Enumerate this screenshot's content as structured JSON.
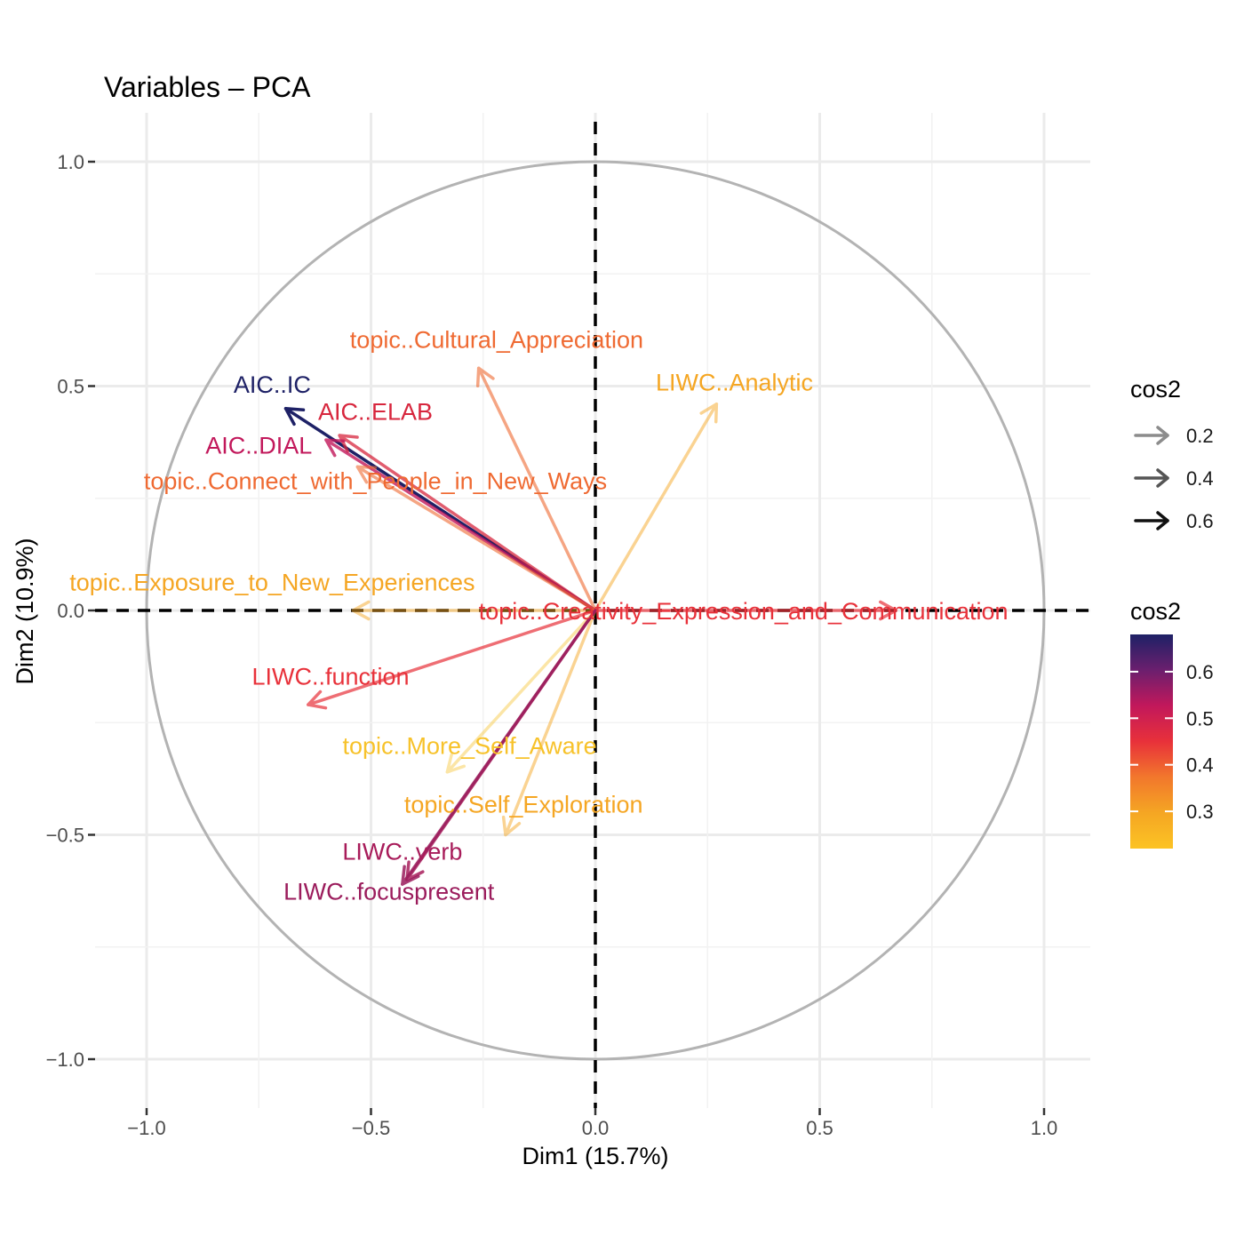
{
  "chart_data": {
    "type": "pca-variable-correlation-circle",
    "title": "Variables – PCA",
    "xlabel": "Dim1 (15.7%)",
    "ylabel": "Dim2 (10.9%)",
    "xlim": [
      -1.1,
      1.1
    ],
    "ylim": [
      -1.1,
      1.1
    ],
    "x_ticks": [
      {
        "value": -1.0,
        "label": "−1.0"
      },
      {
        "value": -0.5,
        "label": "−0.5"
      },
      {
        "value": 0.0,
        "label": "0.0"
      },
      {
        "value": 0.5,
        "label": "0.5"
      },
      {
        "value": 1.0,
        "label": "1.0"
      }
    ],
    "y_ticks": [
      {
        "value": 1.0,
        "label": "1.0"
      },
      {
        "value": 0.5,
        "label": "0.5"
      },
      {
        "value": 0.0,
        "label": "0.0"
      },
      {
        "value": -0.5,
        "label": "−0.5"
      },
      {
        "value": -1.0,
        "label": "−1.0"
      }
    ],
    "grid": true,
    "unit_circle": true,
    "variables": [
      {
        "name": "topic..Cultural_Appreciation",
        "x": -0.26,
        "y": 0.54,
        "cos2": 0.38,
        "color": "#ef6a32",
        "label_x": -0.22,
        "label_y": 0.585
      },
      {
        "name": "LIWC..Analytic",
        "x": 0.27,
        "y": 0.46,
        "cos2": 0.3,
        "color": "#f5a623",
        "label_x": 0.31,
        "label_y": 0.49
      },
      {
        "name": "AIC..IC",
        "x": -0.69,
        "y": 0.45,
        "cos2": 0.68,
        "color": "#1e2166",
        "label_x": -0.72,
        "label_y": 0.485
      },
      {
        "name": "AIC..ELAB",
        "x": -0.57,
        "y": 0.39,
        "cos2": 0.48,
        "color": "#d7263d",
        "label_x": -0.49,
        "label_y": 0.425
      },
      {
        "name": "AIC..DIAL",
        "x": -0.6,
        "y": 0.38,
        "cos2": 0.52,
        "color": "#c2185b",
        "label_x": -0.75,
        "label_y": 0.35
      },
      {
        "name": "topic..Connect_with_People_in_New_Ways",
        "x": -0.53,
        "y": 0.32,
        "cos2": 0.38,
        "color": "#ef6a32",
        "label_x": -0.49,
        "label_y": 0.27
      },
      {
        "name": "topic..Exposure_to_New_Experiences",
        "x": -0.54,
        "y": 0.0,
        "cos2": 0.3,
        "color": "#f5a623",
        "label_x": -0.72,
        "label_y": 0.045
      },
      {
        "name": "topic..Creativity_Expression_and_Communication",
        "x": 0.67,
        "y": 0.0,
        "cos2": 0.45,
        "color": "#e8313a",
        "label_x": 0.33,
        "label_y": -0.02
      },
      {
        "name": "LIWC..function",
        "x": -0.64,
        "y": -0.21,
        "cos2": 0.45,
        "color": "#e8313a",
        "label_x": -0.59,
        "label_y": -0.165
      },
      {
        "name": "topic..More_Self_Aware",
        "x": -0.33,
        "y": -0.36,
        "cos2": 0.24,
        "color": "#f7c22a",
        "label_x": -0.28,
        "label_y": -0.32
      },
      {
        "name": "topic..Self_Exploration",
        "x": -0.2,
        "y": -0.5,
        "cos2": 0.3,
        "color": "#f5a623",
        "label_x": -0.16,
        "label_y": -0.45
      },
      {
        "name": "LIWC..verb",
        "x": -0.42,
        "y": -0.6,
        "cos2": 0.55,
        "color": "#a81c5a",
        "label_x": -0.43,
        "label_y": -0.555
      },
      {
        "name": "LIWC..focuspresent",
        "x": -0.43,
        "y": -0.61,
        "cos2": 0.56,
        "color": "#9b1c5c",
        "label_x": -0.46,
        "label_y": -0.645
      }
    ],
    "legend_alpha": {
      "title": "cos2",
      "items": [
        {
          "label": "0.2",
          "color": "#8c8c8c"
        },
        {
          "label": "0.4",
          "color": "#555555"
        },
        {
          "label": "0.6",
          "color": "#111111"
        }
      ]
    },
    "legend_color": {
      "title": "cos2",
      "range": [
        0.22,
        0.68
      ],
      "breaks": [
        {
          "value": 0.6,
          "label": "0.6"
        },
        {
          "value": 0.5,
          "label": "0.5"
        },
        {
          "value": 0.4,
          "label": "0.4"
        },
        {
          "value": 0.3,
          "label": "0.3"
        }
      ],
      "gradient": [
        "#1e2166",
        "#6b1f6e",
        "#c2185b",
        "#e8313a",
        "#f2772c",
        "#f5a623",
        "#fcc324"
      ]
    }
  }
}
